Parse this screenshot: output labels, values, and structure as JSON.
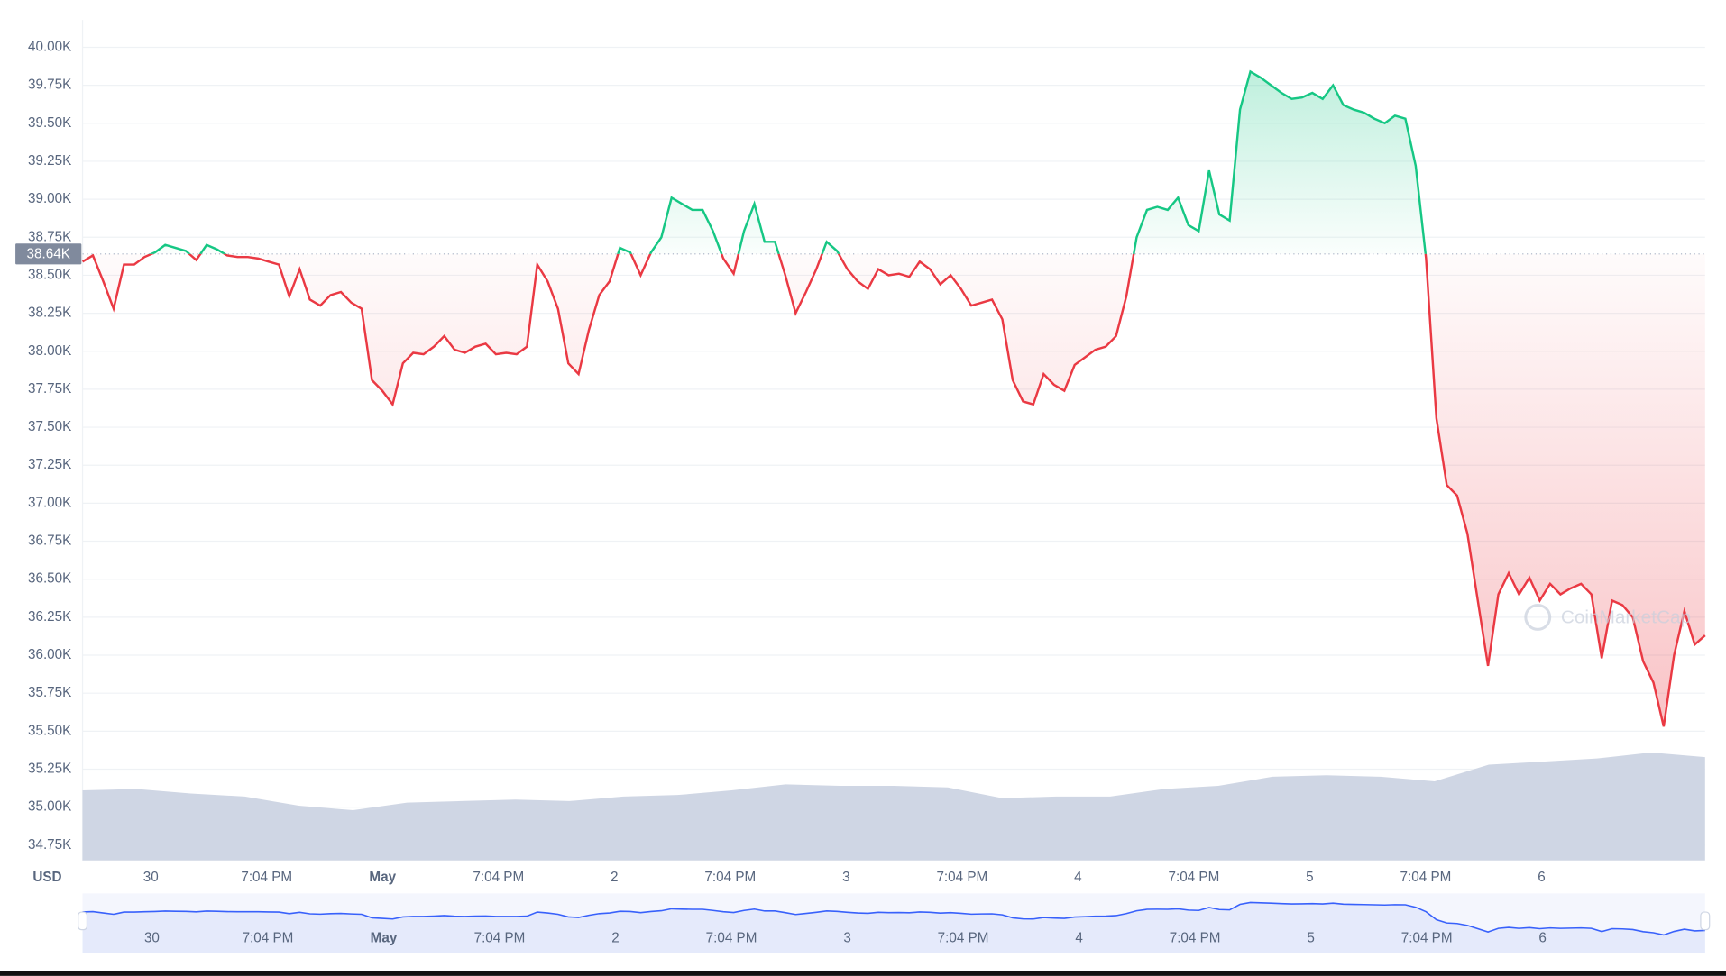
{
  "chart_data": {
    "type": "line",
    "y_unit_label": "USD",
    "watermark": "CoinMarketCap",
    "up_color": "#16c784",
    "down_color": "#ea3943",
    "grid": true,
    "reference": {
      "value": 38640,
      "label": "38.64K"
    },
    "ylim": [
      34650,
      40180
    ],
    "yticks": [
      {
        "value": 34750,
        "label": "34.75K"
      },
      {
        "value": 35000,
        "label": "35.00K"
      },
      {
        "value": 35250,
        "label": "35.25K"
      },
      {
        "value": 35500,
        "label": "35.50K"
      },
      {
        "value": 35750,
        "label": "35.75K"
      },
      {
        "value": 36000,
        "label": "36.00K"
      },
      {
        "value": 36250,
        "label": "36.25K"
      },
      {
        "value": 36500,
        "label": "36.50K"
      },
      {
        "value": 36750,
        "label": "36.75K"
      },
      {
        "value": 37000,
        "label": "37.00K"
      },
      {
        "value": 37250,
        "label": "37.25K"
      },
      {
        "value": 37500,
        "label": "37.50K"
      },
      {
        "value": 37750,
        "label": "37.75K"
      },
      {
        "value": 38000,
        "label": "38.00K"
      },
      {
        "value": 38250,
        "label": "38.25K"
      },
      {
        "value": 38500,
        "label": "38.50K"
      },
      {
        "value": 38750,
        "label": "38.75K"
      },
      {
        "value": 39000,
        "label": "39.00K"
      },
      {
        "value": 39250,
        "label": "39.25K"
      },
      {
        "value": 39500,
        "label": "39.50K"
      },
      {
        "value": 39750,
        "label": "39.75K"
      },
      {
        "value": 40000,
        "label": "40.00K"
      }
    ],
    "xtick_labels": [
      "30",
      "7:04 PM",
      "May",
      "7:04 PM",
      "2",
      "7:04 PM",
      "3",
      "7:04 PM",
      "4",
      "7:04 PM",
      "5",
      "7:04 PM",
      "6"
    ],
    "values": [
      38590,
      38630,
      38460,
      38280,
      38570,
      38570,
      38620,
      38650,
      38700,
      38680,
      38660,
      38600,
      38700,
      38670,
      38630,
      38620,
      38620,
      38610,
      38590,
      38570,
      38360,
      38540,
      38340,
      38300,
      38370,
      38390,
      38320,
      38280,
      37810,
      37740,
      37650,
      37920,
      37990,
      37980,
      38030,
      38100,
      38010,
      37990,
      38030,
      38050,
      37980,
      37990,
      37980,
      38030,
      38570,
      38460,
      38280,
      37920,
      37850,
      38140,
      38370,
      38460,
      38680,
      38650,
      38500,
      38650,
      38750,
      39010,
      38970,
      38930,
      38930,
      38790,
      38610,
      38510,
      38790,
      38970,
      38720,
      38720,
      38500,
      38250,
      38390,
      38540,
      38720,
      38660,
      38540,
      38460,
      38410,
      38540,
      38500,
      38510,
      38490,
      38590,
      38540,
      38440,
      38500,
      38410,
      38300,
      38320,
      38340,
      38210,
      37810,
      37670,
      37650,
      37850,
      37780,
      37740,
      37910,
      37960,
      38010,
      38030,
      38100,
      38360,
      38750,
      38930,
      38950,
      38930,
      39010,
      38830,
      38790,
      39190,
      38900,
      38860,
      39590,
      39840,
      39800,
      39750,
      39700,
      39660,
      39670,
      39700,
      39660,
      39750,
      39620,
      39590,
      39570,
      39530,
      39500,
      39550,
      39530,
      39220,
      38610,
      37560,
      37120,
      37050,
      36800,
      36360,
      35930,
      36400,
      36540,
      36400,
      36510,
      36360,
      36470,
      36400,
      36440,
      36470,
      36400,
      35980,
      36360,
      36330,
      36250,
      35960,
      35820,
      35530,
      36000,
      36290,
      36070,
      36130
    ],
    "volume": {
      "color": "#cfd6e4",
      "values": [
        35110,
        35120,
        35090,
        35070,
        35010,
        34980,
        35030,
        35040,
        35050,
        35040,
        35070,
        35080,
        35110,
        35150,
        35140,
        35140,
        35130,
        35060,
        35070,
        35070,
        35120,
        35140,
        35200,
        35210,
        35200,
        35170,
        35280,
        35300,
        35320,
        35360,
        35330
      ]
    },
    "navigator": {
      "color": "#3861fb",
      "fill": "#e5eafb"
    }
  }
}
